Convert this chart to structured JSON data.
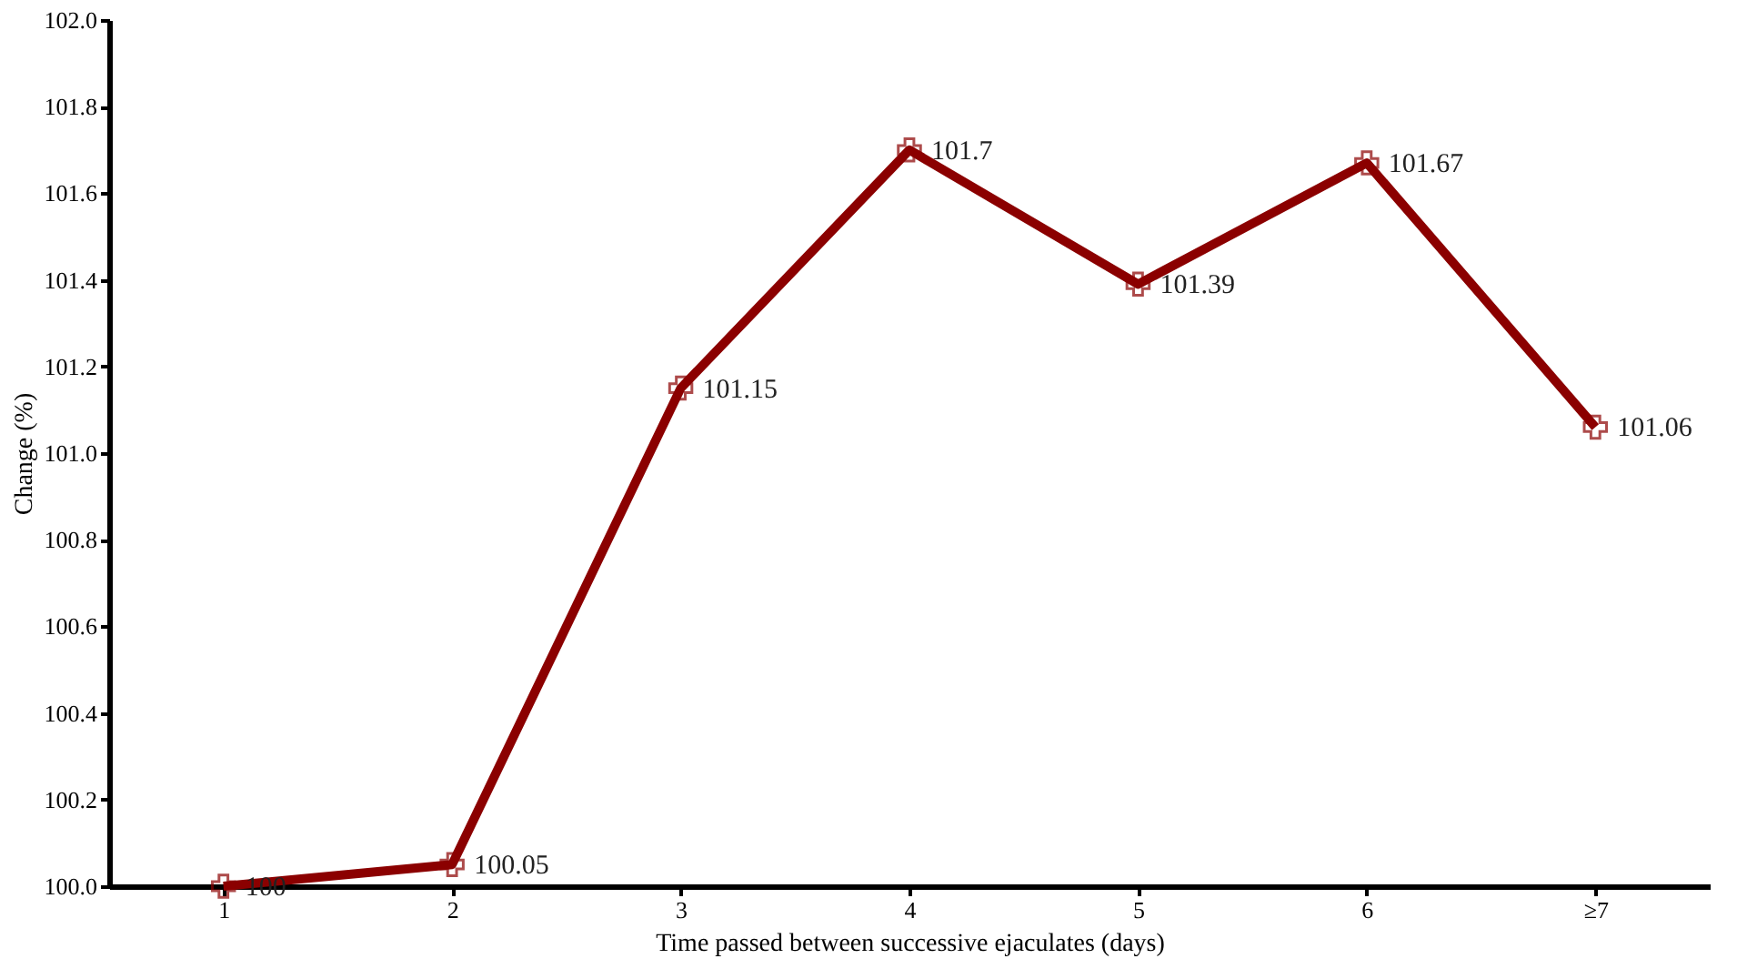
{
  "chart_data": {
    "type": "line",
    "xlabel": "Time passed between successive ejaculates (days)",
    "ylabel": "Change (%)",
    "categories": [
      "1",
      "2",
      "3",
      "4",
      "5",
      "6",
      "≥7"
    ],
    "series": [
      {
        "color": "#8b0000",
        "values": [
          100,
          100.05,
          101.15,
          101.7,
          101.39,
          101.67,
          101.06
        ]
      }
    ],
    "ylim": [
      100,
      102
    ],
    "yticks": [
      {
        "value": 100,
        "label": "100.0"
      },
      100.2,
      100.4,
      100.6,
      100.8,
      {
        "value": 101,
        "label": "101.0"
      },
      101.2,
      101.4,
      101.6,
      101.8,
      {
        "value": 102,
        "label": "102.0"
      }
    ],
    "data_labels": true,
    "grid": false,
    "marker": "cross",
    "line_style": "solid"
  }
}
